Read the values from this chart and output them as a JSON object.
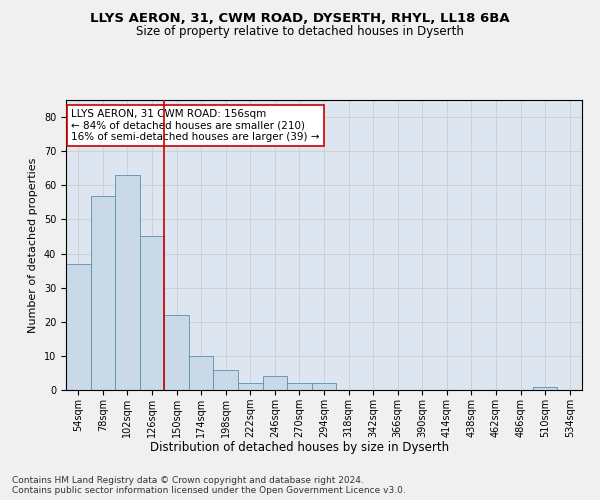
{
  "title1": "LLYS AERON, 31, CWM ROAD, DYSERTH, RHYL, LL18 6BA",
  "title2": "Size of property relative to detached houses in Dyserth",
  "xlabel": "Distribution of detached houses by size in Dyserth",
  "ylabel": "Number of detached properties",
  "bin_labels": [
    "54sqm",
    "78sqm",
    "102sqm",
    "126sqm",
    "150sqm",
    "174sqm",
    "198sqm",
    "222sqm",
    "246sqm",
    "270sqm",
    "294sqm",
    "318sqm",
    "342sqm",
    "366sqm",
    "390sqm",
    "414sqm",
    "438sqm",
    "462sqm",
    "486sqm",
    "510sqm",
    "534sqm"
  ],
  "bar_values": [
    37,
    57,
    63,
    45,
    22,
    10,
    6,
    2,
    4,
    2,
    2,
    0,
    0,
    0,
    0,
    0,
    0,
    0,
    0,
    1,
    0
  ],
  "bar_color": "#c9d9e8",
  "bar_edge_color": "#5b8db0",
  "vline_x": 3.5,
  "annotation_text": "LLYS AERON, 31 CWM ROAD: 156sqm\n← 84% of detached houses are smaller (210)\n16% of semi-detached houses are larger (39) →",
  "annotation_box_color": "#ffffff",
  "annotation_box_edge_color": "#cc0000",
  "vline_color": "#cc0000",
  "ylim": [
    0,
    85
  ],
  "yticks": [
    0,
    10,
    20,
    30,
    40,
    50,
    60,
    70,
    80
  ],
  "grid_color": "#cccccc",
  "plot_bg_color": "#dde6f0",
  "fig_bg_color": "#f0f0f0",
  "footer_text": "Contains HM Land Registry data © Crown copyright and database right 2024.\nContains public sector information licensed under the Open Government Licence v3.0.",
  "title_fontsize": 9.5,
  "subtitle_fontsize": 8.5,
  "axis_label_fontsize": 8,
  "tick_fontsize": 7,
  "annotation_fontsize": 7.5,
  "footer_fontsize": 6.5
}
